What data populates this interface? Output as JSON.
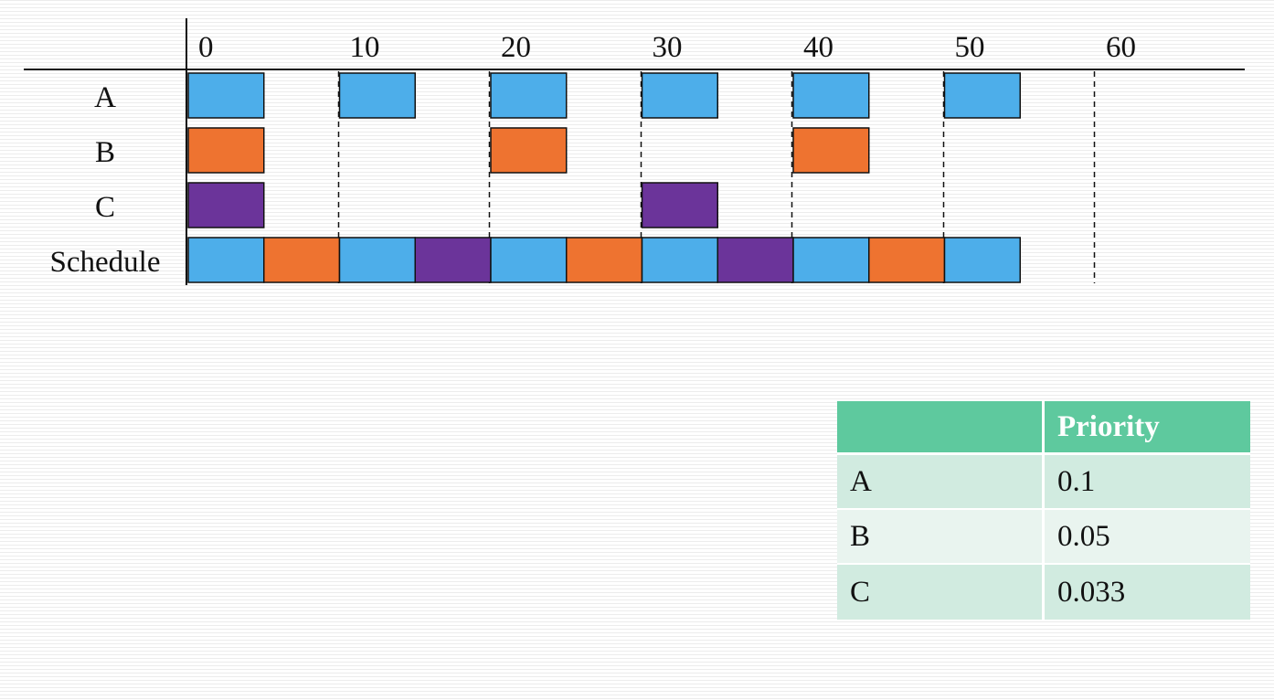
{
  "chart_data": {
    "type": "gantt",
    "ticks": [
      "0",
      "10",
      "20",
      "30",
      "40",
      "50",
      "60"
    ],
    "tick_values": [
      0,
      10,
      20,
      30,
      40,
      50,
      60
    ],
    "xlim": [
      0,
      60
    ],
    "rows": [
      {
        "label": "A",
        "bars": [
          {
            "start": 0,
            "end": 5,
            "color": "blue"
          },
          {
            "start": 10,
            "end": 15,
            "color": "blue"
          },
          {
            "start": 20,
            "end": 25,
            "color": "blue"
          },
          {
            "start": 30,
            "end": 35,
            "color": "blue"
          },
          {
            "start": 40,
            "end": 45,
            "color": "blue"
          },
          {
            "start": 50,
            "end": 55,
            "color": "blue"
          }
        ]
      },
      {
        "label": "B",
        "bars": [
          {
            "start": 0,
            "end": 5,
            "color": "orange"
          },
          {
            "start": 20,
            "end": 25,
            "color": "orange"
          },
          {
            "start": 40,
            "end": 45,
            "color": "orange"
          }
        ]
      },
      {
        "label": "C",
        "bars": [
          {
            "start": 0,
            "end": 5,
            "color": "purple"
          },
          {
            "start": 30,
            "end": 35,
            "color": "purple"
          }
        ]
      },
      {
        "label": "Schedule",
        "bars": [
          {
            "start": 0,
            "end": 5,
            "color": "blue"
          },
          {
            "start": 5,
            "end": 10,
            "color": "orange"
          },
          {
            "start": 10,
            "end": 15,
            "color": "blue"
          },
          {
            "start": 15,
            "end": 20,
            "color": "purple"
          },
          {
            "start": 20,
            "end": 25,
            "color": "blue"
          },
          {
            "start": 25,
            "end": 30,
            "color": "orange"
          },
          {
            "start": 30,
            "end": 35,
            "color": "blue"
          },
          {
            "start": 35,
            "end": 40,
            "color": "purple"
          },
          {
            "start": 40,
            "end": 45,
            "color": "blue"
          },
          {
            "start": 45,
            "end": 50,
            "color": "orange"
          },
          {
            "start": 50,
            "end": 55,
            "color": "blue"
          }
        ]
      }
    ],
    "dashed_gridlines_at": [
      10,
      20,
      30,
      40,
      50,
      60
    ],
    "colors": {
      "blue": "#4daeea",
      "orange": "#ee7330",
      "purple": "#6b349a"
    }
  },
  "table": {
    "headers": [
      "",
      "Priority"
    ],
    "rows": [
      [
        "A",
        "0.1"
      ],
      [
        "B",
        "0.05"
      ],
      [
        "C",
        "0.033"
      ]
    ],
    "header_color": "#5ec99e",
    "row_colors": [
      "#d1ebe0",
      "#e9f4ef",
      "#d1ebe0"
    ]
  }
}
